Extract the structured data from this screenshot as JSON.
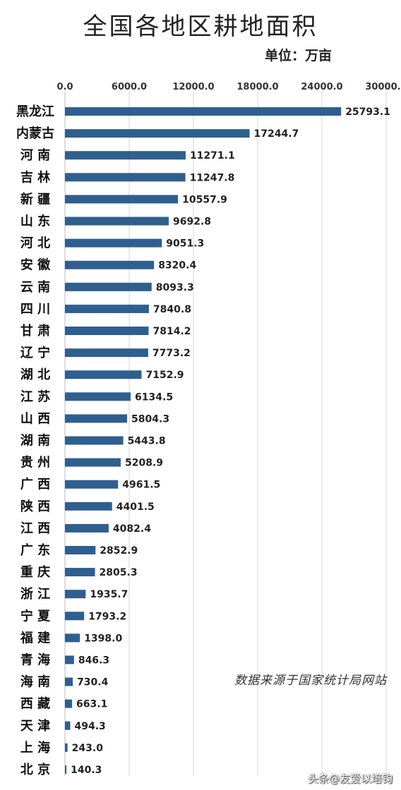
{
  "chart_data": {
    "type": "bar",
    "orientation": "horizontal",
    "title": "全国各地区耕地面积",
    "unit": "单位：万亩",
    "xlim": [
      0,
      30000
    ],
    "xticks": [
      "0.0",
      "6000.0",
      "12000.0",
      "18000.0",
      "24000.0",
      "30000.0"
    ],
    "grid": true,
    "categories": [
      "黑龙江",
      "内蒙古",
      "河 南",
      "吉 林",
      "新 疆",
      "山 东",
      "河 北",
      "安 徽",
      "云 南",
      "四 川",
      "甘 肃",
      "辽 宁",
      "湖 北",
      "江 苏",
      "山 西",
      "湖 南",
      "贵 州",
      "广 西",
      "陕 西",
      "江 西",
      "广 东",
      "重 庆",
      "浙 江",
      "宁 夏",
      "福 建",
      "青 海",
      "海 南",
      "西 藏",
      "天 津",
      "上 海",
      "北 京"
    ],
    "values": [
      25793.1,
      17244.7,
      11271.1,
      11247.8,
      10557.9,
      9692.8,
      9051.3,
      8320.4,
      8093.3,
      7840.8,
      7814.2,
      7773.2,
      7152.9,
      6134.5,
      5804.3,
      5443.8,
      5208.9,
      4961.5,
      4401.5,
      4082.4,
      2852.9,
      2805.3,
      1935.7,
      1793.2,
      1398.0,
      846.3,
      730.4,
      663.1,
      494.3,
      243.0,
      140.3
    ],
    "value_labels": [
      "25793.1",
      "17244.7",
      "11271.1",
      "11247.8",
      "10557.9",
      "9692.8",
      "9051.3",
      "8320.4",
      "8093.3",
      "7840.8",
      "7814.2",
      "7773.2",
      "7152.9",
      "6134.5",
      "5804.3",
      "5443.8",
      "5208.9",
      "4961.5",
      "4401.5",
      "4082.4",
      "2852.9",
      "2805.3",
      "1935.7",
      "1793.2",
      "1398.0",
      "846.3",
      "730.4",
      "663.1",
      "494.3",
      "243.0",
      "140.3"
    ],
    "bar_color": "#2f5f8f",
    "grid_color": "#d4d4d4"
  },
  "source_note": "数据来源于国家统计局网站",
  "watermark": "头条@友爱以培钧"
}
